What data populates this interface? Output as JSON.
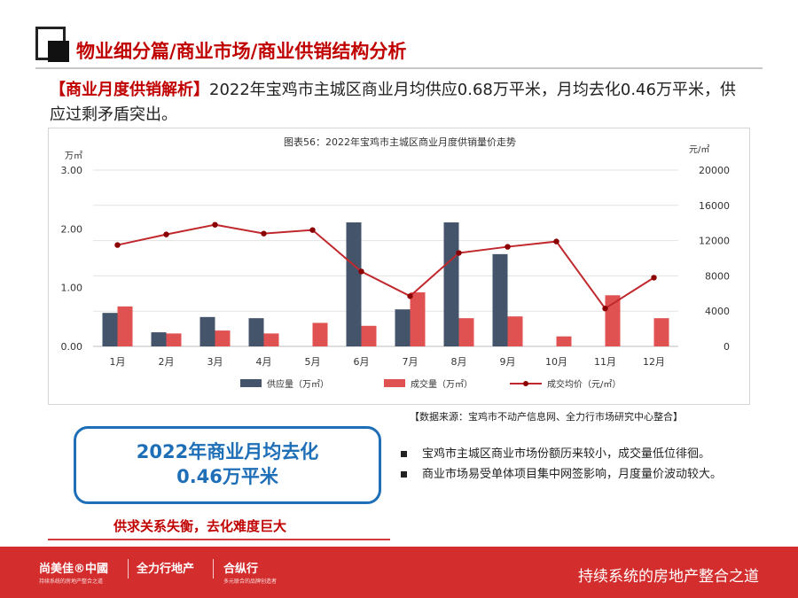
{
  "header": {
    "title": "物业细分篇/商业市场/商业供销结构分析"
  },
  "summary": {
    "tag": "【商业月度供销解析】",
    "text": "2022年宝鸡市主城区商业月均供应0.68万平米，月均去化0.46万平米，供应过剩矛盾突出。"
  },
  "chart_data": {
    "type": "bar",
    "title": "图表56：2022年宝鸡市主城区商业月度供销量价走势",
    "left_axis_unit": "万㎡",
    "right_axis_unit": "元/㎡",
    "categories": [
      "1月",
      "2月",
      "3月",
      "4月",
      "5月",
      "6月",
      "7月",
      "8月",
      "9月",
      "10月",
      "11月",
      "12月"
    ],
    "ylim_left": [
      0,
      3
    ],
    "left_ticks": [
      "0.00",
      "1.00",
      "2.00",
      "3.00"
    ],
    "ylim_right": [
      0,
      20000
    ],
    "right_ticks": [
      "0",
      "4000",
      "8000",
      "12000",
      "16000",
      "20000"
    ],
    "series": [
      {
        "name": "供应量（万㎡）",
        "type": "bar",
        "axis": "left",
        "color": "#44546a",
        "values": [
          0.57,
          0.24,
          0.5,
          0.48,
          0,
          2.11,
          0.63,
          2.11,
          1.57,
          0,
          0,
          0
        ]
      },
      {
        "name": "成交量（万㎡）",
        "type": "bar",
        "axis": "left",
        "color": "#e05252",
        "values": [
          0.68,
          0.22,
          0.27,
          0.22,
          0.4,
          0.35,
          0.92,
          0.48,
          0.51,
          0.17,
          0.87,
          0.48
        ]
      },
      {
        "name": "成交均价（元/㎡）",
        "type": "line",
        "axis": "right",
        "color": "#c0282e",
        "values": [
          11500,
          12700,
          13800,
          12800,
          13200,
          8500,
          5700,
          10600,
          11300,
          11900,
          4300,
          7800
        ]
      }
    ],
    "grid": true,
    "legend_position": "bottom"
  },
  "source": "【数据来源：宝鸡市不动产信息网、全力行市场研究中心整合】",
  "callout": {
    "line1": "2022年商业月均去化",
    "line2": "0.46万平米",
    "subtitle": "供求关系失衡，去化难度巨大"
  },
  "bullets": [
    "宝鸡市主城区商业市场份额历来较小，成交量低位徘徊。",
    "商业市场易受单体项目集中网签影响，月度量价波动较大。"
  ],
  "footer": {
    "brand1": "尚美佳®中國",
    "brand1_small": "持续系统的房地产整合之道",
    "brand2": "全力行地产",
    "brand3": "合纵行",
    "brand3_small": "多元联合的品牌创造者",
    "slogan": "持续系统的房地产整合之道"
  },
  "colors": {
    "accent_red": "#c00000",
    "callout_blue": "#1e6fb8",
    "footer_red": "#d32d2d"
  }
}
